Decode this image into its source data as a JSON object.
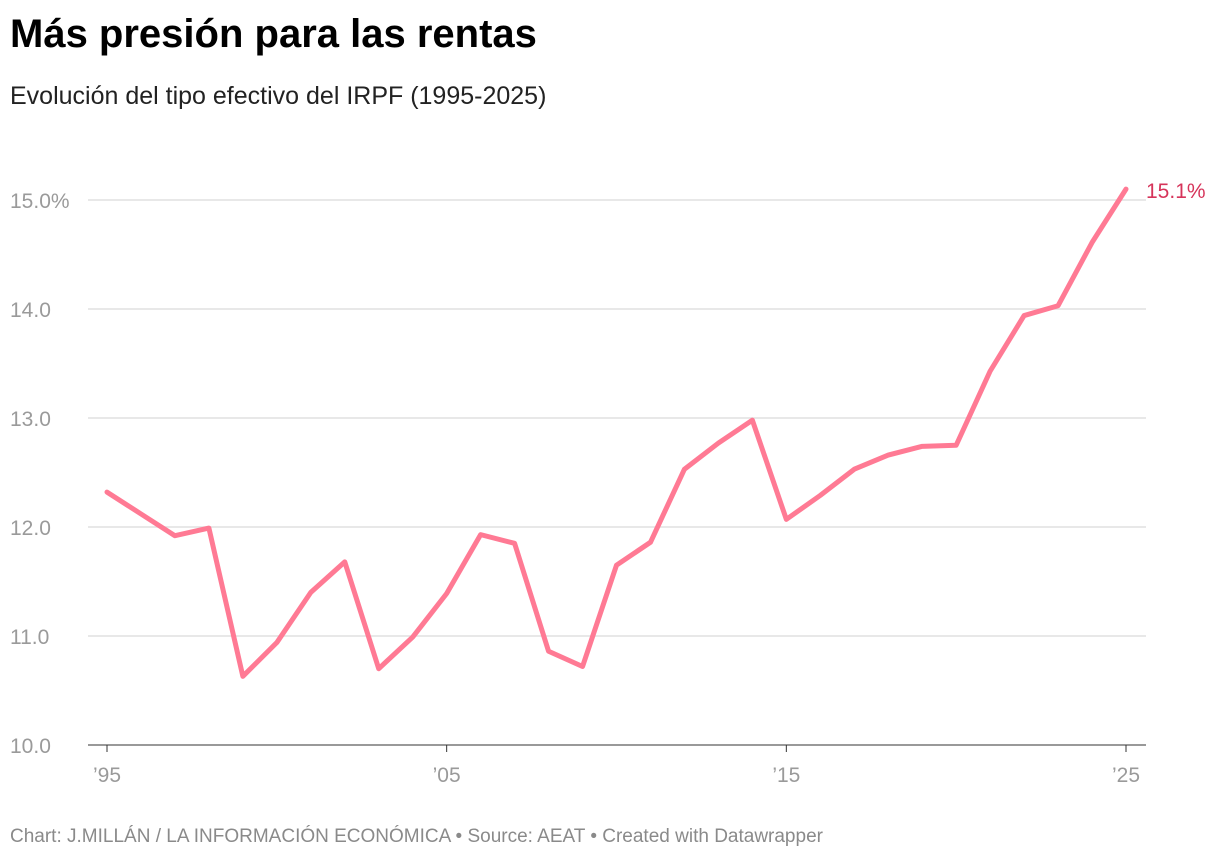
{
  "chart_data": {
    "type": "line",
    "title": "Más presión para las rentas",
    "subtitle": "Evolución del tipo efectivo del IRPF (1995-2025)",
    "x": [
      1995,
      1996,
      1997,
      1998,
      1999,
      2000,
      2001,
      2002,
      2003,
      2004,
      2005,
      2006,
      2007,
      2008,
      2009,
      2010,
      2011,
      2012,
      2013,
      2014,
      2015,
      2016,
      2017,
      2018,
      2019,
      2020,
      2021,
      2022,
      2023,
      2024,
      2025
    ],
    "series": [
      {
        "values": [
          12.32,
          12.12,
          11.92,
          11.99,
          10.63,
          10.94,
          11.4,
          11.68,
          10.7,
          10.99,
          11.39,
          11.93,
          11.85,
          10.86,
          10.72,
          11.65,
          11.86,
          12.53,
          12.77,
          12.98,
          12.07,
          12.29,
          12.53,
          12.66,
          12.74,
          12.75,
          13.43,
          13.94,
          14.03,
          14.61,
          15.1
        ]
      }
    ],
    "ylim": [
      10,
      15.1
    ],
    "yticks": [
      {
        "value": 10,
        "label": "10.0"
      },
      {
        "value": 11,
        "label": "11.0"
      },
      {
        "value": 12,
        "label": "12.0"
      },
      {
        "value": 13,
        "label": "13.0"
      },
      {
        "value": 14,
        "label": "14.0"
      },
      {
        "value": 15,
        "label": "15.0%"
      }
    ],
    "xticks": [
      {
        "value": 1995,
        "label": "’95"
      },
      {
        "value": 2005,
        "label": "’05"
      },
      {
        "value": 2015,
        "label": "’15"
      },
      {
        "value": 2025,
        "label": "’25"
      }
    ],
    "end_label": "15.1%",
    "grid": true,
    "line_color": "#ff7a94",
    "label_color": "#d6345a"
  },
  "footer": "Chart: J.MILLÁN / LA INFORMACIÓN ECONÓMICA • Source: AEAT • Created with Datawrapper"
}
